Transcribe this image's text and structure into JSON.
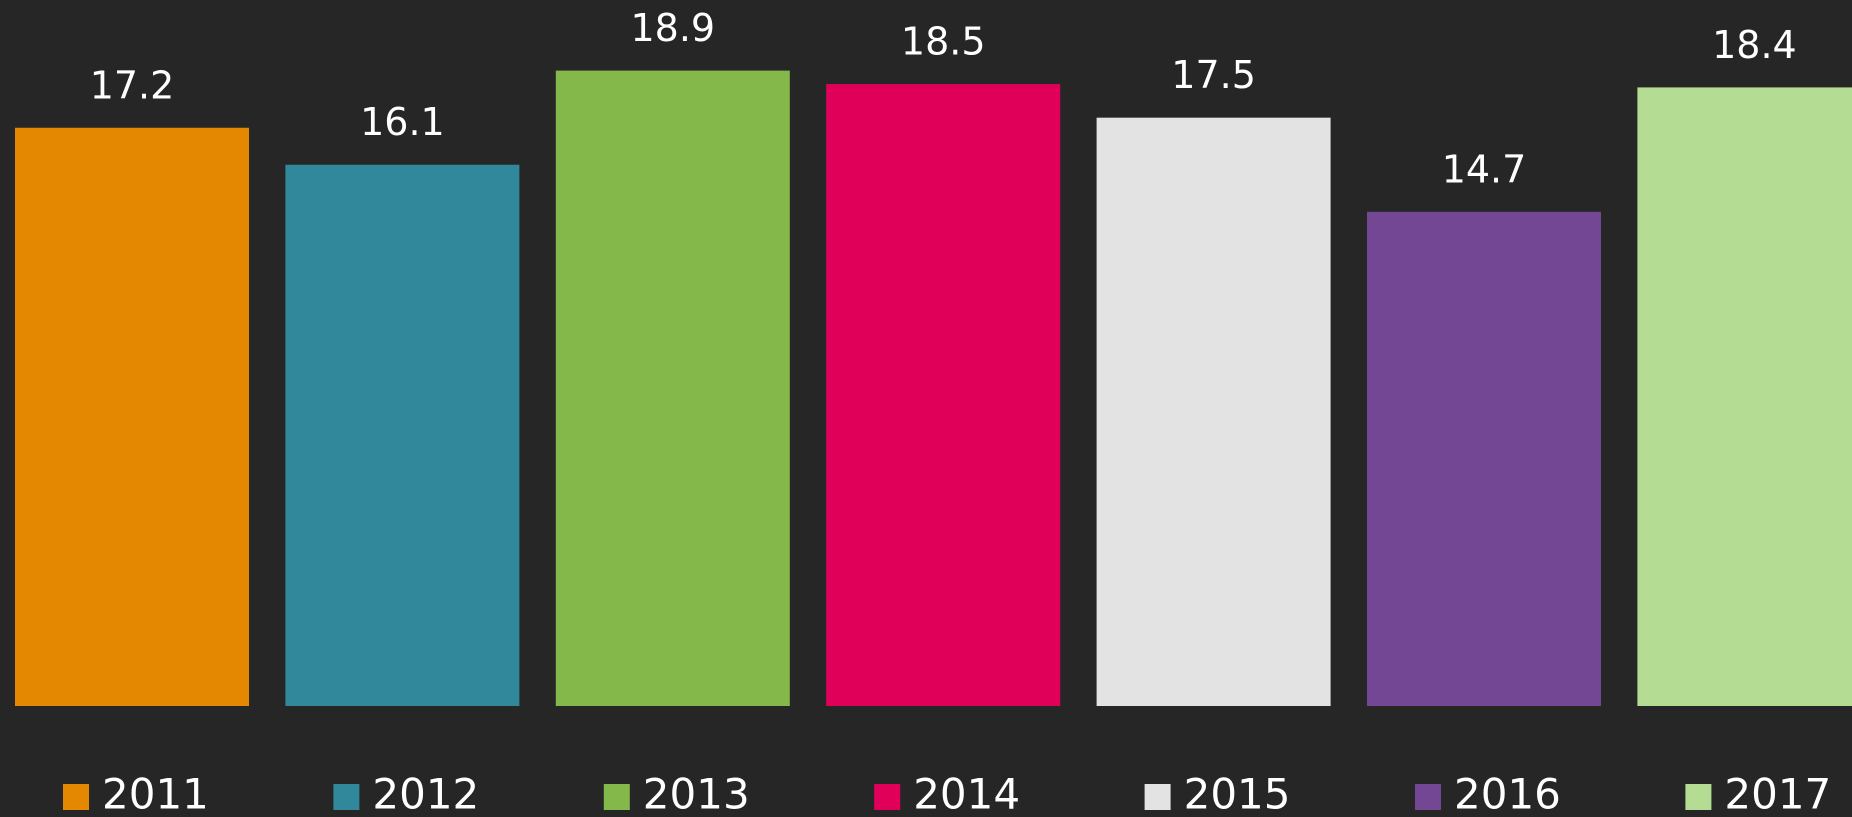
{
  "chart_data": {
    "type": "bar",
    "series": [
      {
        "name": "2011",
        "color": "#e38800",
        "values": [
          17.2
        ]
      },
      {
        "name": "2012",
        "color": "#31889a",
        "values": [
          16.1
        ]
      },
      {
        "name": "2013",
        "color": "#84b84a",
        "values": [
          18.9
        ]
      },
      {
        "name": "2014",
        "color": "#e0005a",
        "values": [
          18.5
        ]
      },
      {
        "name": "2015",
        "color": "#e3e3e3",
        "values": [
          17.5
        ]
      },
      {
        "name": "2016",
        "color": "#744794",
        "values": [
          14.7
        ]
      },
      {
        "name": "2017",
        "color": "#b4dd93",
        "values": [
          18.4
        ]
      }
    ],
    "ylim": [
      0,
      21
    ],
    "legend": "bottom"
  }
}
